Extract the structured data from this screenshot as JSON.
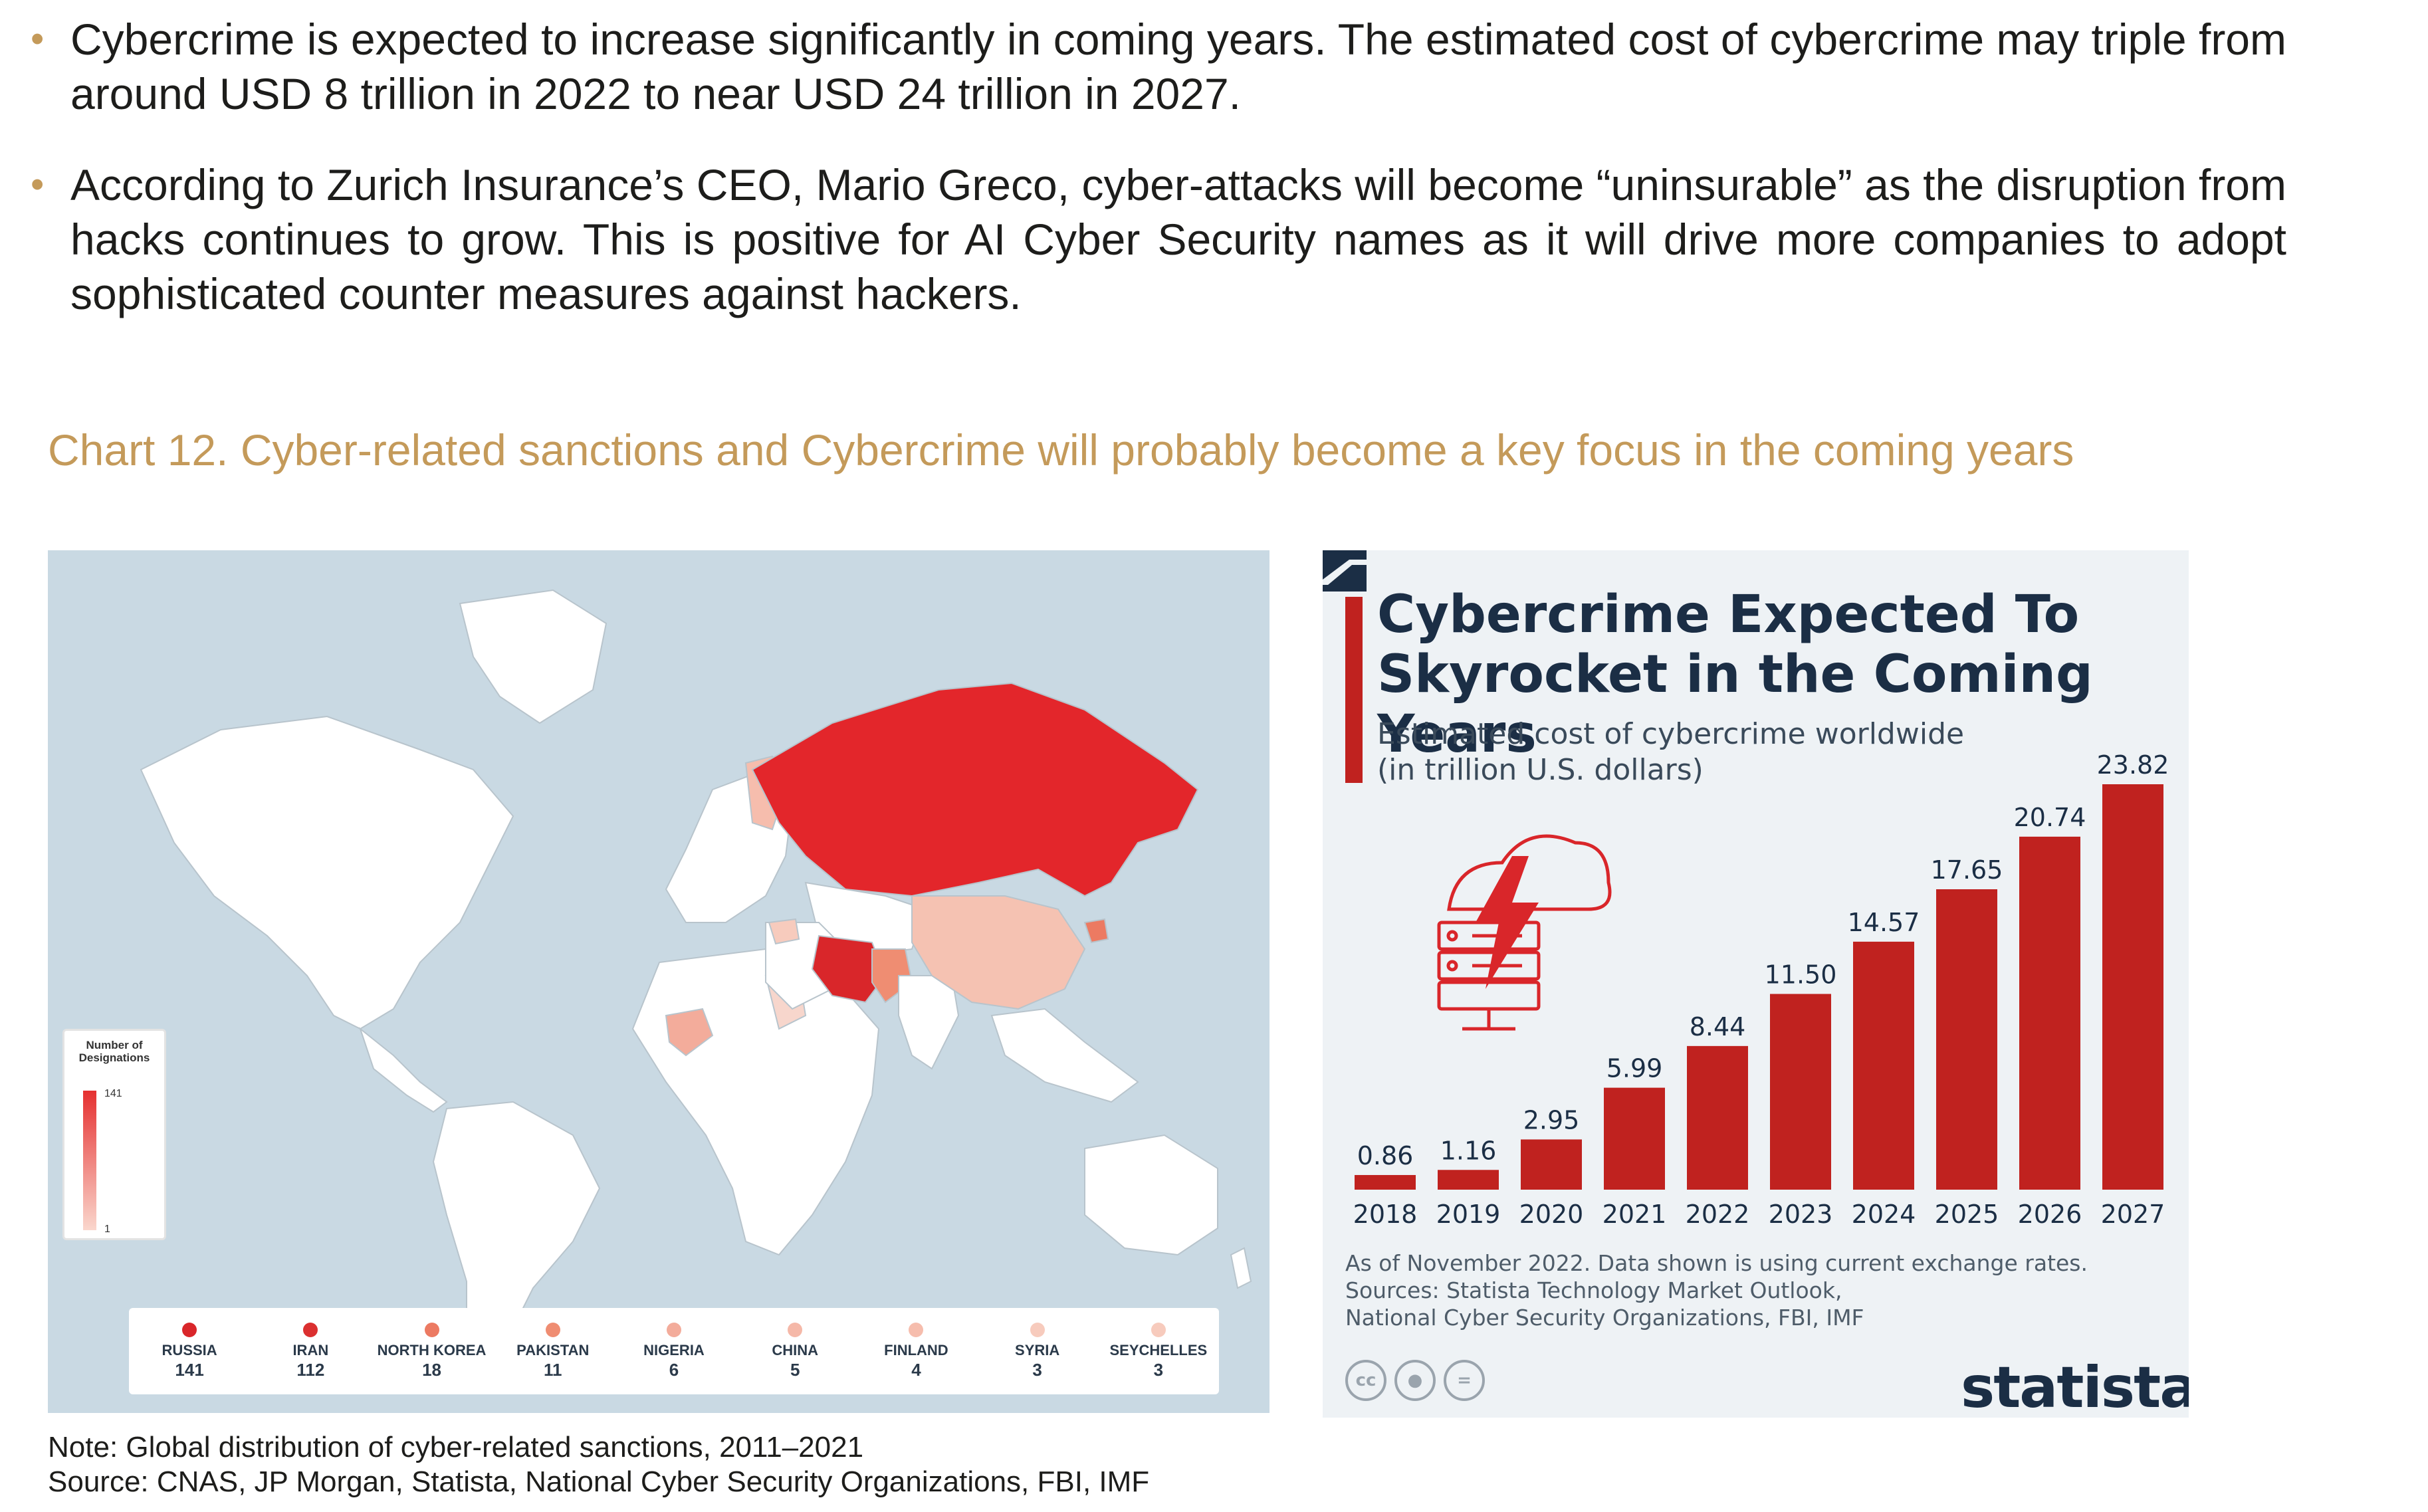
{
  "bullets": [
    "Cybercrime is expected to increase significantly in coming years. The estimated cost of cybercrime may triple from around USD 8 trillion in 2022 to near USD 24 trillion in 2027.",
    "According to Zurich Insurance’s CEO, Mario Greco, cyber-attacks will become “uninsurable” as the disruption from hacks continues to grow. This is positive for AI Cyber Security names as it will drive more companies to adopt sophisticated counter measures against hackers."
  ],
  "chart_title": "Chart 12. Cyber-related sanctions and Cybercrime will probably become a key focus in the coming years",
  "map": {
    "legend_title": "Number of Designations",
    "legend_max": "141",
    "legend_min": "1",
    "countries": [
      {
        "name": "RUSSIA",
        "value": "141",
        "color": "#d9262a"
      },
      {
        "name": "IRAN",
        "value": "112",
        "color": "#db3030"
      },
      {
        "name": "NORTH KOREA",
        "value": "18",
        "color": "#ec7a62"
      },
      {
        "name": "PAKISTAN",
        "value": "11",
        "color": "#ef8d72"
      },
      {
        "name": "NIGERIA",
        "value": "6",
        "color": "#f3ac9b"
      },
      {
        "name": "CHINA",
        "value": "5",
        "color": "#f5b8a8"
      },
      {
        "name": "FINLAND",
        "value": "4",
        "color": "#f6bdad"
      },
      {
        "name": "SYRIA",
        "value": "3",
        "color": "#f7cbbd"
      },
      {
        "name": "SEYCHELLES",
        "value": "3",
        "color": "#f7cbbd"
      }
    ]
  },
  "statista": {
    "title_line1": "Cybercrime Expected To",
    "title_line2": "Skyrocket in the Coming Years",
    "subtitle_line1": "Estimated cost of cybercrime worldwide",
    "subtitle_line2": "(in trillion U.S. dollars)",
    "note_line1": "As of November 2022. Data shown is using current exchange rates.",
    "note_line2": "Sources: Statista Technology Market Outlook,",
    "note_line3": "National Cyber Security Organizations, FBI, IMF",
    "logo": "statista",
    "icons": [
      "cc-icon",
      "attribution-icon",
      "no-derivatives-icon"
    ]
  },
  "chart_data": {
    "type": "bar",
    "categories": [
      "2018",
      "2019",
      "2020",
      "2021",
      "2022",
      "2023",
      "2024",
      "2025",
      "2026",
      "2027"
    ],
    "values": [
      0.86,
      1.16,
      2.95,
      5.99,
      8.44,
      11.5,
      14.57,
      17.65,
      20.74,
      23.82
    ],
    "labels": [
      "0.86",
      "1.16",
      "2.95",
      "5.99",
      "8.44",
      "11.50",
      "14.57",
      "17.65",
      "20.74",
      "23.82"
    ],
    "title": "Cybercrime Expected To Skyrocket in the Coming Years",
    "subtitle": "Estimated cost of cybercrime worldwide (in trillion U.S. dollars)",
    "color": "#c0221f",
    "ylim": [
      0,
      23.82
    ]
  },
  "note_line1": "Note: Global distribution of cyber-related sanctions, 2011–2021",
  "note_line2": "Source: CNAS, JP Morgan, Statista, National Cyber Security Organizations, FBI, IMF"
}
